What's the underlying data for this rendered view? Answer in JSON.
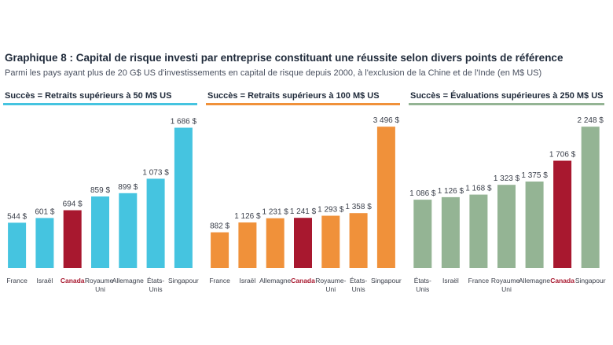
{
  "title": "Graphique 8 : Capital de risque investi par entreprise constituant une réussite selon divers points de référence",
  "subtitle": "Parmi les pays ayant plus de 20 G$ US d'investissements en capital de risque depuis 2000, à l'exclusion de la Chine et de l'Inde (en M$ US)",
  "highlight_color": "#a8182f",
  "chart_data": [
    {
      "type": "bar",
      "title": "Succès = Retraits supérieurs à 50 M$ US",
      "color": "#45c4e0",
      "categories": [
        [
          "France"
        ],
        [
          "Israël"
        ],
        [
          "Canada"
        ],
        [
          "Royaume-",
          "Uni"
        ],
        [
          "Allemagne"
        ],
        [
          "États-",
          "Unis"
        ],
        [
          "Singapour"
        ]
      ],
      "values": [
        544,
        601,
        694,
        859,
        899,
        1073,
        1686
      ],
      "labels": [
        "544 $",
        "601 $",
        "694 $",
        "859 $",
        "899 $",
        "1 073 $",
        "1 686 $"
      ],
      "highlight_index": 2,
      "ylim": [
        0,
        1700
      ]
    },
    {
      "type": "bar",
      "title": "Succès = Retraits supérieurs à 100 M$ US",
      "color": "#f0913a",
      "categories": [
        [
          "France"
        ],
        [
          "Israël"
        ],
        [
          "Allemagne"
        ],
        [
          "Canada"
        ],
        [
          "Royaume-",
          "Uni"
        ],
        [
          "États-",
          "Unis"
        ],
        [
          "Singapour"
        ]
      ],
      "values": [
        882,
        1126,
        1231,
        1241,
        1293,
        1358,
        3496
      ],
      "labels": [
        "882 $",
        "1 126 $",
        "1 231 $",
        "1 241 $",
        "1 293 $",
        "1 358 $",
        "3 496 $"
      ],
      "highlight_index": 3,
      "ylim": [
        0,
        3500
      ]
    },
    {
      "type": "bar",
      "title": "Succès = Évaluations supérieures à 250 M$ US",
      "color": "#94b494",
      "categories": [
        [
          "États-",
          "Unis"
        ],
        [
          "Israël"
        ],
        [
          "France"
        ],
        [
          "Royaume-",
          "Uni"
        ],
        [
          "Allemagne"
        ],
        [
          "Canada"
        ],
        [
          "Singapour"
        ]
      ],
      "values": [
        1086,
        1126,
        1168,
        1323,
        1375,
        1706,
        2248
      ],
      "labels": [
        "1 086 $",
        "1 126 $",
        "1 168 $",
        "1 323 $",
        "1 375 $",
        "1 706 $",
        "2 248 $"
      ],
      "highlight_index": 5,
      "ylim": [
        0,
        2250
      ]
    }
  ]
}
